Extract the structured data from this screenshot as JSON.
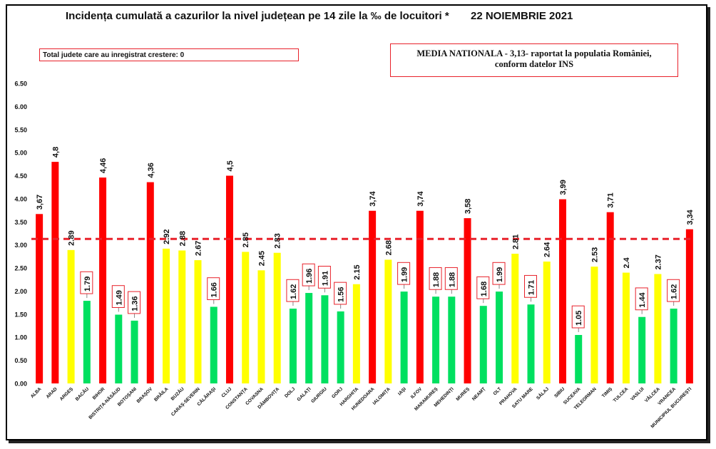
{
  "header": {
    "title": "Incidența cumulată a cazurilor la nivel județean pe 14 zile la ‰ de locuitori *",
    "date": "22 NOIEMBRIE 2021",
    "increase_note": "Total judete care au inregistrat crestere: 0",
    "national_avg_line1": "MEDIA NATIONALA - 3,13-  raportat la populatia  României,",
    "national_avg_line2": "conform datelor INS"
  },
  "colors": {
    "red": "#ff0000",
    "yellow": "#ffff00",
    "green": "#00e060",
    "avg_line": "#e8212a"
  },
  "chart_data": {
    "type": "bar",
    "title": "Incidența cumulată a cazurilor la nivel județean pe 14 zile la ‰ de locuitori *",
    "xlabel": "",
    "ylabel": "",
    "ylim": [
      0,
      6.5
    ],
    "yticks": [
      "0.00",
      "0.50",
      "1.00",
      "1.50",
      "2.00",
      "2.50",
      "3.00",
      "3.50",
      "4.00",
      "4.50",
      "5.00",
      "5.50",
      "6.00",
      "6.50"
    ],
    "national_average": 3.13,
    "grid": false,
    "categories": [
      "ALBA",
      "ARAD",
      "ARGEȘ",
      "BACĂU",
      "BIHOR",
      "BISTRIȚA-NĂSĂUD",
      "BOTOȘANI",
      "BRAȘOV",
      "BRĂILA",
      "BUZĂU",
      "CARAȘ-SEVERIN",
      "CĂLĂRAȘI",
      "CLUJ",
      "CONSTANȚA",
      "COVASNA",
      "DÂMBOVIȚA",
      "DOLJ",
      "GALAȚI",
      "GIURGIU",
      "GORJ",
      "HARGHITA",
      "HUNEDOARA",
      "IALOMIȚA",
      "IAȘI",
      "ILFOV",
      "MARAMUREȘ",
      "MEHEDINȚI",
      "MUREȘ",
      "NEAMȚ",
      "OLT",
      "PRAHOVA",
      "SATU MARE",
      "SĂLAJ",
      "SIBIU",
      "SUCEAVA",
      "TELEORMAN",
      "TIMIȘ",
      "TULCEA",
      "VASLUI",
      "VÂLCEA",
      "VRANCEA",
      "MUNICIPIUL BUCUREȘTI"
    ],
    "values": [
      3.67,
      4.8,
      2.89,
      1.79,
      4.46,
      1.49,
      1.36,
      4.36,
      2.92,
      2.88,
      2.67,
      1.66,
      4.5,
      2.85,
      2.45,
      2.83,
      1.62,
      1.96,
      1.91,
      1.56,
      2.15,
      3.74,
      2.68,
      1.99,
      3.74,
      1.88,
      1.88,
      3.58,
      1.68,
      1.99,
      2.81,
      1.71,
      2.64,
      3.99,
      1.05,
      2.53,
      3.71,
      2.4,
      1.44,
      2.37,
      1.62,
      3.34
    ],
    "labels": [
      "3,67",
      "4,8",
      "2.89",
      "1.79",
      "4,46",
      "1.49",
      "1.36",
      "4,36",
      "2.92",
      "2.88",
      "2.67",
      "1.66",
      "4,5",
      "2.85",
      "2.45",
      "2.83",
      "1.62",
      "1.96",
      "1.91",
      "1.56",
      "2.15",
      "3,74",
      "2.68",
      "1.99",
      "3,74",
      "1.88",
      "1.88",
      "3,58",
      "1.68",
      "1.99",
      "2.81",
      "1.71",
      "2.64",
      "3,99",
      "1.05",
      "2.53",
      "3,71",
      "2.4",
      "1.44",
      "2.37",
      "1.62",
      "3,34"
    ],
    "bar_colors": [
      "red",
      "red",
      "yellow",
      "green",
      "red",
      "green",
      "green",
      "red",
      "yellow",
      "yellow",
      "yellow",
      "green",
      "red",
      "yellow",
      "yellow",
      "yellow",
      "green",
      "green",
      "green",
      "green",
      "yellow",
      "red",
      "yellow",
      "green",
      "red",
      "green",
      "green",
      "red",
      "green",
      "green",
      "yellow",
      "green",
      "yellow",
      "red",
      "green",
      "yellow",
      "red",
      "yellow",
      "green",
      "yellow",
      "green",
      "red"
    ],
    "boxed_labels": [
      false,
      false,
      false,
      true,
      false,
      true,
      true,
      false,
      false,
      false,
      false,
      true,
      false,
      false,
      false,
      false,
      true,
      true,
      true,
      true,
      false,
      false,
      false,
      true,
      false,
      true,
      true,
      false,
      true,
      true,
      false,
      true,
      false,
      false,
      true,
      false,
      false,
      false,
      true,
      false,
      true,
      false
    ]
  }
}
